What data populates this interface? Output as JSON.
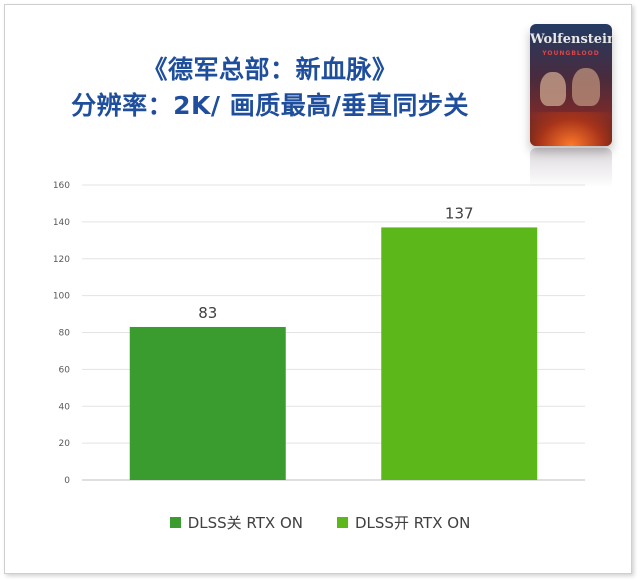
{
  "title_line1": "《德军总部：新血脉》",
  "title_line2": "分辨率：2K/ 画质最高/垂直同步关",
  "cover": {
    "logo": "Wolfenstein",
    "subtitle": "YOUNGBLOOD"
  },
  "chart_data": {
    "type": "bar",
    "categories": [
      "DLSS关 RTX ON",
      "DLSS开 RTX ON"
    ],
    "values": [
      83,
      137
    ],
    "colors": [
      "#3a9c2f",
      "#5cb81a"
    ],
    "ylim": [
      0,
      160
    ],
    "yticks": [
      0,
      20,
      40,
      60,
      80,
      100,
      120,
      140,
      160
    ],
    "grid": true,
    "legend_position": "bottom"
  }
}
